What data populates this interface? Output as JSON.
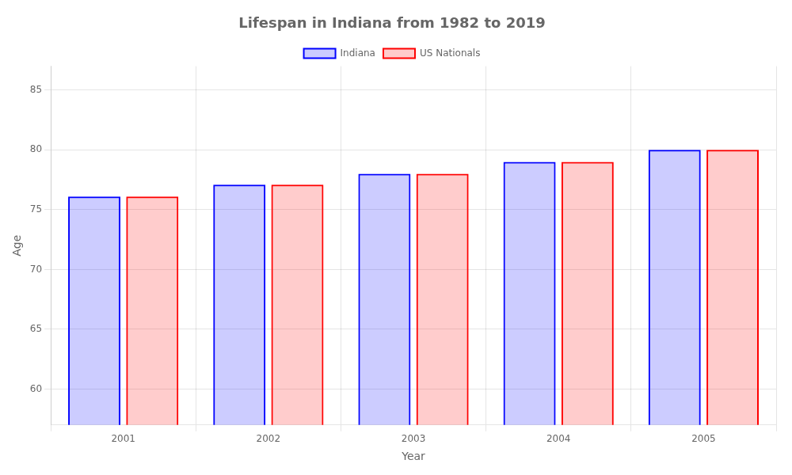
{
  "chart_data": {
    "type": "bar",
    "title": "Lifespan in Indiana from 1982 to 2019",
    "xlabel": "Year",
    "ylabel": "Age",
    "categories": [
      "2001",
      "2002",
      "2003",
      "2004",
      "2005"
    ],
    "series": [
      {
        "name": "Indiana",
        "color": "#0000ff",
        "values": [
          76.1,
          77.1,
          78.0,
          79.0,
          80.0
        ]
      },
      {
        "name": "US Nationals",
        "color": "#ff0000",
        "values": [
          76.1,
          77.1,
          78.0,
          79.0,
          80.0
        ]
      }
    ],
    "ylim": [
      57,
      87
    ],
    "yticks": [
      60,
      65,
      70,
      75,
      80,
      85
    ],
    "grid": true,
    "legend": "top"
  }
}
